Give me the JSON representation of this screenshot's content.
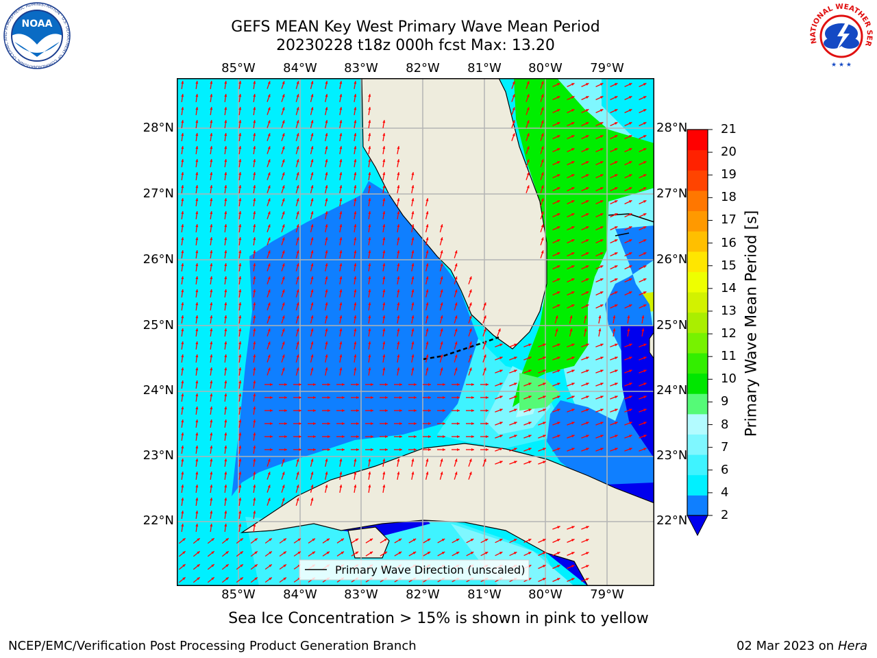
{
  "header": {
    "title_line1": "GEFS MEAN Key West Primary Wave Mean Period",
    "title_line2": "20230228 t18z 000h fcst   Max: 13.20"
  },
  "logos": {
    "left": "NOAA",
    "left_ring": "NATIONAL OCEANIC AND ATMOSPHERIC ADMINISTRATION · U.S. DEPARTMENT OF COMMERCE",
    "right_ring": "NATIONAL WEATHER SERVICE"
  },
  "map": {
    "lon_labels": [
      "85°W",
      "84°W",
      "83°W",
      "82°W",
      "81°W",
      "80°W",
      "79°W"
    ],
    "lat_labels": [
      "28°N",
      "27°N",
      "26°N",
      "25°N",
      "24°N",
      "23°N",
      "22°N"
    ],
    "legend_label": "Primary Wave Direction (unscaled)",
    "extent": {
      "lon": [
        -86.0,
        -78.0
      ],
      "lat": [
        21.0,
        28.8
      ]
    }
  },
  "colorbar": {
    "label": "Primary Wave Mean Period [s]",
    "ticks": [
      "2",
      "4",
      "6",
      "7",
      "8",
      "9",
      "10",
      "11",
      "12",
      "13",
      "14",
      "15",
      "16",
      "17",
      "18",
      "19",
      "20",
      "21"
    ],
    "colors": [
      "#0f7fff",
      "#00f0ff",
      "#3ff3ff",
      "#7ff7ff",
      "#b3fbff",
      "#55fa77",
      "#00e600",
      "#33ee00",
      "#77f200",
      "#aaee00",
      "#d2f200",
      "#eeff00",
      "#ffe600",
      "#ffbf00",
      "#ff9900",
      "#ff7700",
      "#ff4400",
      "#ff2200",
      "#ff0000"
    ],
    "under_color": "#0000ee"
  },
  "colors": {
    "land": "#eeecdd",
    "gulf_deep": "#0f7fff",
    "shelf": "#00f0ff",
    "green": "#00ee00",
    "dark_blue": "#0000ee",
    "arrow": "#ff0000"
  },
  "note": "Sea Ice Concentration > 15% is shown in pink to yellow",
  "footer": {
    "left": "NCEP/EMC/Verification Post Processing Product Generation Branch",
    "date": "02 Mar 2023 on",
    "host": "Hera"
  }
}
